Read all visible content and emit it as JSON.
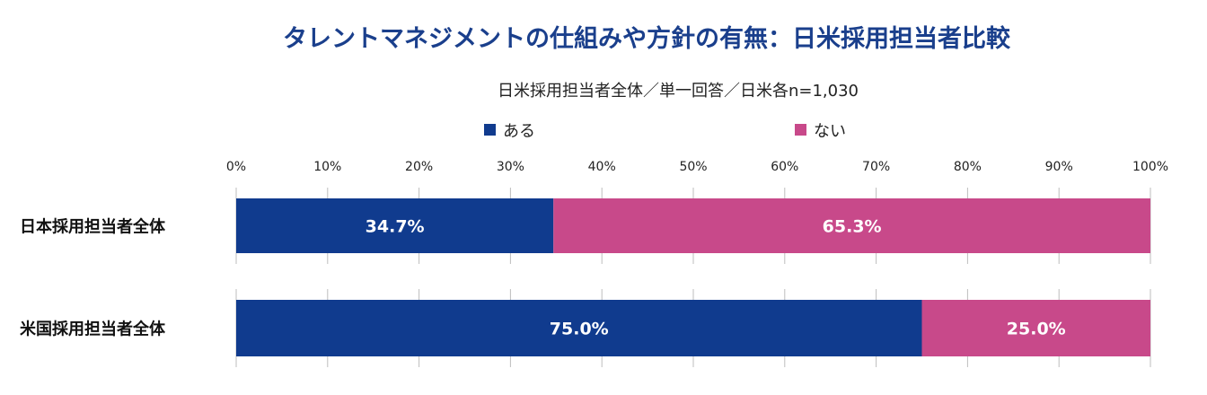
{
  "chart_data": {
    "type": "bar",
    "orientation": "horizontal",
    "stacked": true,
    "title": "タレントマネジメントの仕組みや方針の有無：日米採用担当者比較",
    "subtitle": "日米採用担当者全体／単一回答／日米各n=1,030",
    "categories": [
      "日本採用担当者全体",
      "米国採用担当者全体"
    ],
    "series": [
      {
        "name": "ある",
        "color": "#103b8e",
        "values": [
          34.7,
          75.0
        ],
        "labels": [
          "34.7%",
          "75.0%"
        ]
      },
      {
        "name": "ない",
        "color": "#c8498a",
        "values": [
          65.3,
          25.0
        ],
        "labels": [
          "65.3%",
          "25.0%"
        ]
      }
    ],
    "xlim": [
      0,
      100
    ],
    "x_ticks": [
      "0%",
      "10%",
      "20%",
      "30%",
      "40%",
      "50%",
      "60%",
      "70%",
      "80%",
      "90%",
      "100%"
    ],
    "legend_position": "top",
    "title_color": "#1a3f8c"
  }
}
